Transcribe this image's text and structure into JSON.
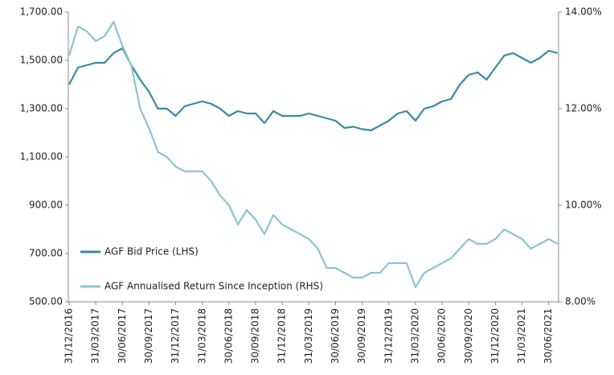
{
  "chart_data": {
    "type": "line",
    "categories": [
      "31/12/2016",
      null,
      null,
      "31/03/2017",
      null,
      null,
      "30/06/2017",
      null,
      null,
      "30/09/2017",
      null,
      null,
      "31/12/2017",
      null,
      null,
      "31/03/2018",
      null,
      null,
      "30/06/2018",
      null,
      null,
      "30/09/2018",
      null,
      null,
      "31/12/2018",
      null,
      null,
      "31/03/2019",
      null,
      null,
      "30/06/2019",
      null,
      null,
      "30/09/2019",
      null,
      null,
      "31/12/2019",
      null,
      null,
      "31/03/2020",
      null,
      null,
      "30/06/2020",
      null,
      null,
      "30/09/2020",
      null,
      null,
      "31/12/2020",
      null,
      null,
      "31/03/2021",
      null,
      null,
      "30/06/2021",
      null
    ],
    "series": [
      {
        "name": "AGF Bid Price (LHS)",
        "color": "#3a8aa5",
        "values": [
          1400,
          1470,
          1480,
          1490,
          1490,
          1530,
          1550,
          1480,
          1420,
          1370,
          1300,
          1300,
          1270,
          1310,
          1320,
          1330,
          1320,
          1300,
          1270,
          1290,
          1280,
          1280,
          1240,
          1290,
          1270,
          1270,
          1270,
          1280,
          1270,
          1260,
          1250,
          1220,
          1225,
          1215,
          1210,
          1230,
          1250,
          1280,
          1290,
          1250,
          1300,
          1310,
          1330,
          1340,
          1400,
          1440,
          1450,
          1420,
          1470,
          1520,
          1530,
          1510,
          1490,
          1510,
          1540,
          1530
        ]
      },
      {
        "name": "AGF Annualised Return Since Inception (RHS)",
        "color": "#8fc3d3",
        "axis": "y2",
        "values": [
          13.1,
          13.7,
          13.6,
          13.4,
          13.5,
          13.8,
          13.3,
          12.9,
          12.0,
          11.6,
          11.1,
          11.0,
          10.8,
          10.7,
          10.7,
          10.7,
          10.5,
          10.2,
          10.0,
          9.6,
          9.9,
          9.7,
          9.4,
          9.8,
          9.6,
          9.5,
          9.4,
          9.3,
          9.1,
          8.7,
          8.7,
          8.6,
          8.5,
          8.5,
          8.6,
          8.6,
          8.8,
          8.8,
          8.8,
          8.3,
          8.6,
          8.7,
          8.8,
          8.9,
          9.1,
          9.3,
          9.2,
          9.2,
          9.3,
          9.5,
          9.4,
          9.3,
          9.1,
          9.2,
          9.3,
          9.2
        ]
      }
    ],
    "ylim": [
      500,
      1700
    ],
    "yticks": [
      {
        "value": 500,
        "label": "500.00"
      },
      {
        "value": 700,
        "label": "700.00"
      },
      {
        "value": 900,
        "label": "900.00"
      },
      {
        "value": 1100,
        "label": "1,100.00"
      },
      {
        "value": 1300,
        "label": "1,300.00"
      },
      {
        "value": 1500,
        "label": "1,500.00"
      },
      {
        "value": 1700,
        "label": "1,700.00"
      }
    ],
    "y2lim": [
      8,
      14
    ],
    "y2ticks": [
      {
        "value": 8,
        "label": "8.00%"
      },
      {
        "value": 10,
        "label": "10.00%"
      },
      {
        "value": 12,
        "label": "12.00%"
      },
      {
        "value": 14,
        "label": "14.00%"
      }
    ],
    "grid": false
  }
}
